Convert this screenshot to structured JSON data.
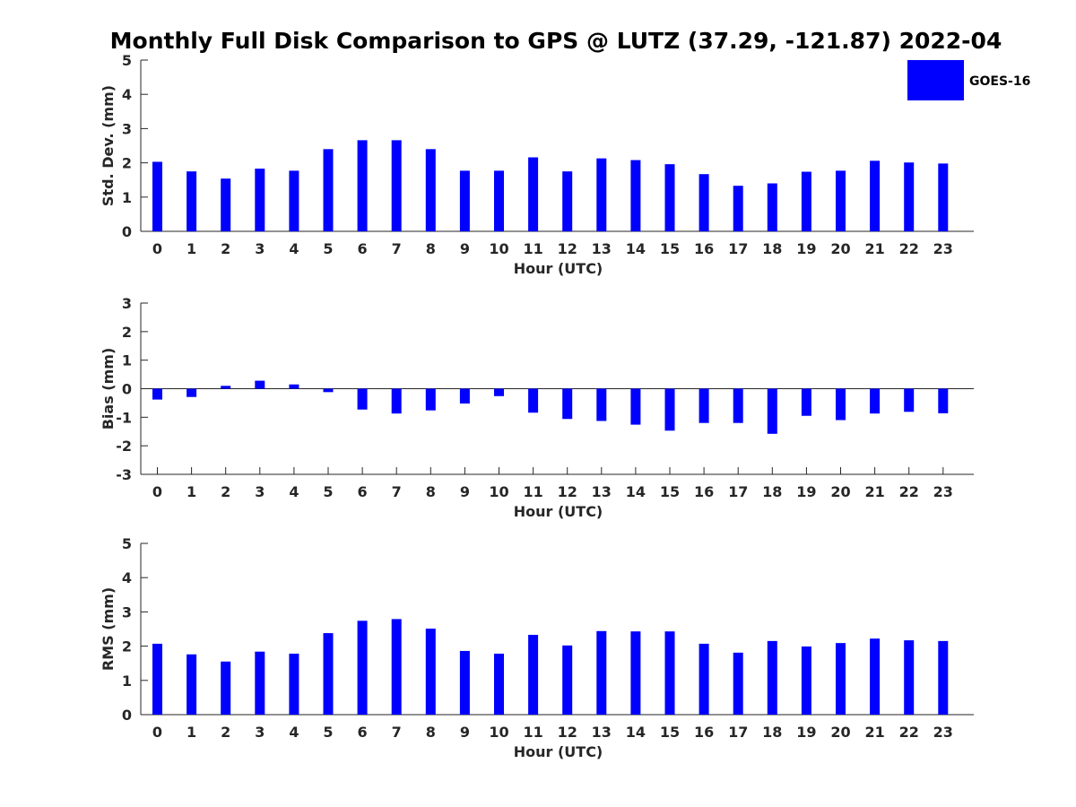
{
  "title": "Monthly Full Disk Comparison to GPS @ LUTZ (37.29, -121.87) 2022-04",
  "legend": {
    "label": "GOES-16",
    "color": "#0000ff"
  },
  "chart_data": [
    {
      "type": "bar",
      "name": "std-dev",
      "categories": [
        "0",
        "1",
        "2",
        "3",
        "4",
        "5",
        "6",
        "7",
        "8",
        "9",
        "10",
        "11",
        "12",
        "13",
        "14",
        "15",
        "16",
        "17",
        "18",
        "19",
        "20",
        "21",
        "22",
        "23"
      ],
      "series": [
        {
          "name": "GOES-16",
          "values": [
            2.03,
            1.75,
            1.54,
            1.83,
            1.77,
            2.4,
            2.66,
            2.66,
            2.4,
            1.77,
            1.77,
            2.16,
            1.75,
            2.13,
            2.08,
            1.96,
            1.67,
            1.33,
            1.4,
            1.74,
            1.77,
            2.06,
            2.01,
            1.98
          ]
        }
      ],
      "title": "",
      "xlabel": "Hour (UTC)",
      "ylabel": "Std. Dev. (mm)",
      "ylim": [
        0,
        5
      ],
      "yticks": [
        "0",
        "1",
        "2",
        "3",
        "4",
        "5"
      ]
    },
    {
      "type": "bar",
      "name": "bias",
      "categories": [
        "0",
        "1",
        "2",
        "3",
        "4",
        "5",
        "6",
        "7",
        "8",
        "9",
        "10",
        "11",
        "12",
        "13",
        "14",
        "15",
        "16",
        "17",
        "18",
        "19",
        "20",
        "21",
        "22",
        "23"
      ],
      "series": [
        {
          "name": "GOES-16",
          "values": [
            -0.38,
            -0.29,
            0.1,
            0.28,
            0.15,
            -0.12,
            -0.73,
            -0.87,
            -0.76,
            -0.52,
            -0.26,
            -0.84,
            -1.06,
            -1.13,
            -1.26,
            -1.47,
            -1.2,
            -1.2,
            -1.58,
            -0.95,
            -1.1,
            -0.87,
            -0.81,
            -0.86
          ]
        }
      ],
      "title": "",
      "xlabel": "Hour (UTC)",
      "ylabel": "Bias (mm)",
      "ylim": [
        -3,
        3
      ],
      "yticks": [
        "-3",
        "-2",
        "-1",
        "0",
        "1",
        "2",
        "3"
      ]
    },
    {
      "type": "bar",
      "name": "rms",
      "categories": [
        "0",
        "1",
        "2",
        "3",
        "4",
        "5",
        "6",
        "7",
        "8",
        "9",
        "10",
        "11",
        "12",
        "13",
        "14",
        "15",
        "16",
        "17",
        "18",
        "19",
        "20",
        "21",
        "22",
        "23"
      ],
      "series": [
        {
          "name": "GOES-16",
          "values": [
            2.07,
            1.76,
            1.55,
            1.84,
            1.78,
            2.38,
            2.74,
            2.79,
            2.51,
            1.86,
            1.78,
            2.33,
            2.02,
            2.44,
            2.43,
            2.43,
            2.07,
            1.81,
            2.15,
            1.99,
            2.09,
            2.22,
            2.17,
            2.15
          ]
        }
      ],
      "title": "",
      "xlabel": "Hour (UTC)",
      "ylabel": "RMS (mm)",
      "ylim": [
        0,
        5
      ],
      "yticks": [
        "0",
        "1",
        "2",
        "3",
        "4",
        "5"
      ]
    }
  ]
}
